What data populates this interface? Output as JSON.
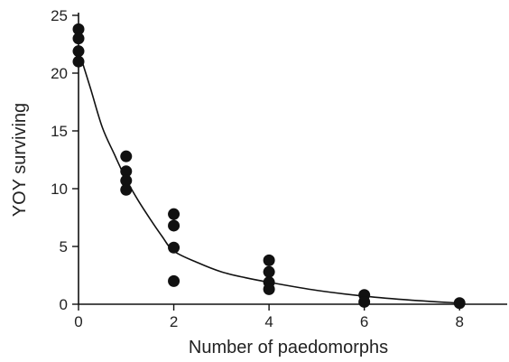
{
  "chart_data": {
    "type": "scatter",
    "title": "",
    "xlabel": "Number of paedomorphs",
    "ylabel": "YOY surviving",
    "xlim": [
      0,
      9
    ],
    "ylim": [
      0,
      25
    ],
    "x_ticks": [
      0,
      2,
      4,
      6,
      8
    ],
    "y_ticks": [
      0,
      5,
      10,
      15,
      20,
      25
    ],
    "grid": false,
    "legend": "none",
    "points": [
      {
        "x": 0,
        "y": 23.8
      },
      {
        "x": 0,
        "y": 23.0
      },
      {
        "x": 0,
        "y": 21.9
      },
      {
        "x": 0,
        "y": 21.0
      },
      {
        "x": 1,
        "y": 12.8
      },
      {
        "x": 1,
        "y": 11.5
      },
      {
        "x": 1,
        "y": 10.7
      },
      {
        "x": 1,
        "y": 9.9
      },
      {
        "x": 2,
        "y": 7.8
      },
      {
        "x": 2,
        "y": 6.8
      },
      {
        "x": 2,
        "y": 4.9
      },
      {
        "x": 2,
        "y": 2.0
      },
      {
        "x": 4,
        "y": 3.8
      },
      {
        "x": 4,
        "y": 2.8
      },
      {
        "x": 4,
        "y": 1.9
      },
      {
        "x": 4,
        "y": 1.3
      },
      {
        "x": 6,
        "y": 0.8
      },
      {
        "x": 6,
        "y": 0.2
      },
      {
        "x": 8,
        "y": 0.1
      }
    ],
    "fit_curve": [
      {
        "x": 0,
        "y": 22.0
      },
      {
        "x": 0.25,
        "y": 18.7
      },
      {
        "x": 0.5,
        "y": 15.3
      },
      {
        "x": 0.75,
        "y": 13.0
      },
      {
        "x": 1,
        "y": 10.8
      },
      {
        "x": 1.25,
        "y": 9.0
      },
      {
        "x": 1.5,
        "y": 7.4
      },
      {
        "x": 1.75,
        "y": 5.9
      },
      {
        "x": 2,
        "y": 4.6
      },
      {
        "x": 2.5,
        "y": 3.6
      },
      {
        "x": 3,
        "y": 2.8
      },
      {
        "x": 3.5,
        "y": 2.3
      },
      {
        "x": 4,
        "y": 1.9
      },
      {
        "x": 5,
        "y": 1.2
      },
      {
        "x": 6,
        "y": 0.7
      },
      {
        "x": 7,
        "y": 0.35
      },
      {
        "x": 8,
        "y": 0.1
      }
    ]
  },
  "colors": {
    "points": "#111111",
    "curve": "#111111",
    "axes": "#111111"
  }
}
